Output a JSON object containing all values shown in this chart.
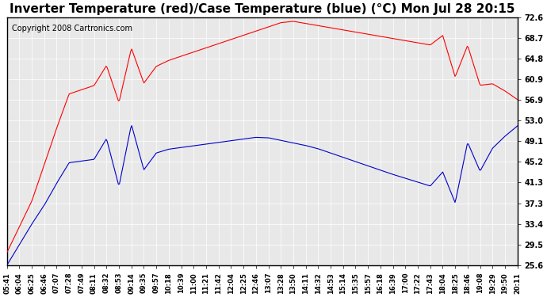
{
  "title": "Inverter Temperature (red)/Case Temperature (blue) (°C) Mon Jul 28 20:15",
  "copyright": "Copyright 2008 Cartronics.com",
  "yticks": [
    25.6,
    29.5,
    33.4,
    37.3,
    41.3,
    45.2,
    49.1,
    53.0,
    56.9,
    60.9,
    64.8,
    68.7,
    72.6
  ],
  "ymin": 25.6,
  "ymax": 72.6,
  "bg_color": "#ffffff",
  "plot_bg_color": "#e8e8e8",
  "grid_color": "#ffffff",
  "red_color": "#ff0000",
  "blue_color": "#0000cc",
  "title_fontsize": 11,
  "copyright_fontsize": 7,
  "xtick_labels": [
    "05:41",
    "06:04",
    "06:25",
    "06:46",
    "07:07",
    "07:28",
    "07:49",
    "08:11",
    "08:32",
    "08:53",
    "09:14",
    "09:35",
    "09:57",
    "10:18",
    "10:39",
    "11:00",
    "11:21",
    "11:42",
    "12:04",
    "12:25",
    "12:46",
    "13:07",
    "13:28",
    "13:50",
    "14:11",
    "14:32",
    "14:53",
    "15:14",
    "15:35",
    "15:57",
    "16:18",
    "16:39",
    "17:00",
    "17:22",
    "17:43",
    "18:04",
    "18:25",
    "18:46",
    "19:08",
    "19:29",
    "19:50",
    "20:11"
  ]
}
